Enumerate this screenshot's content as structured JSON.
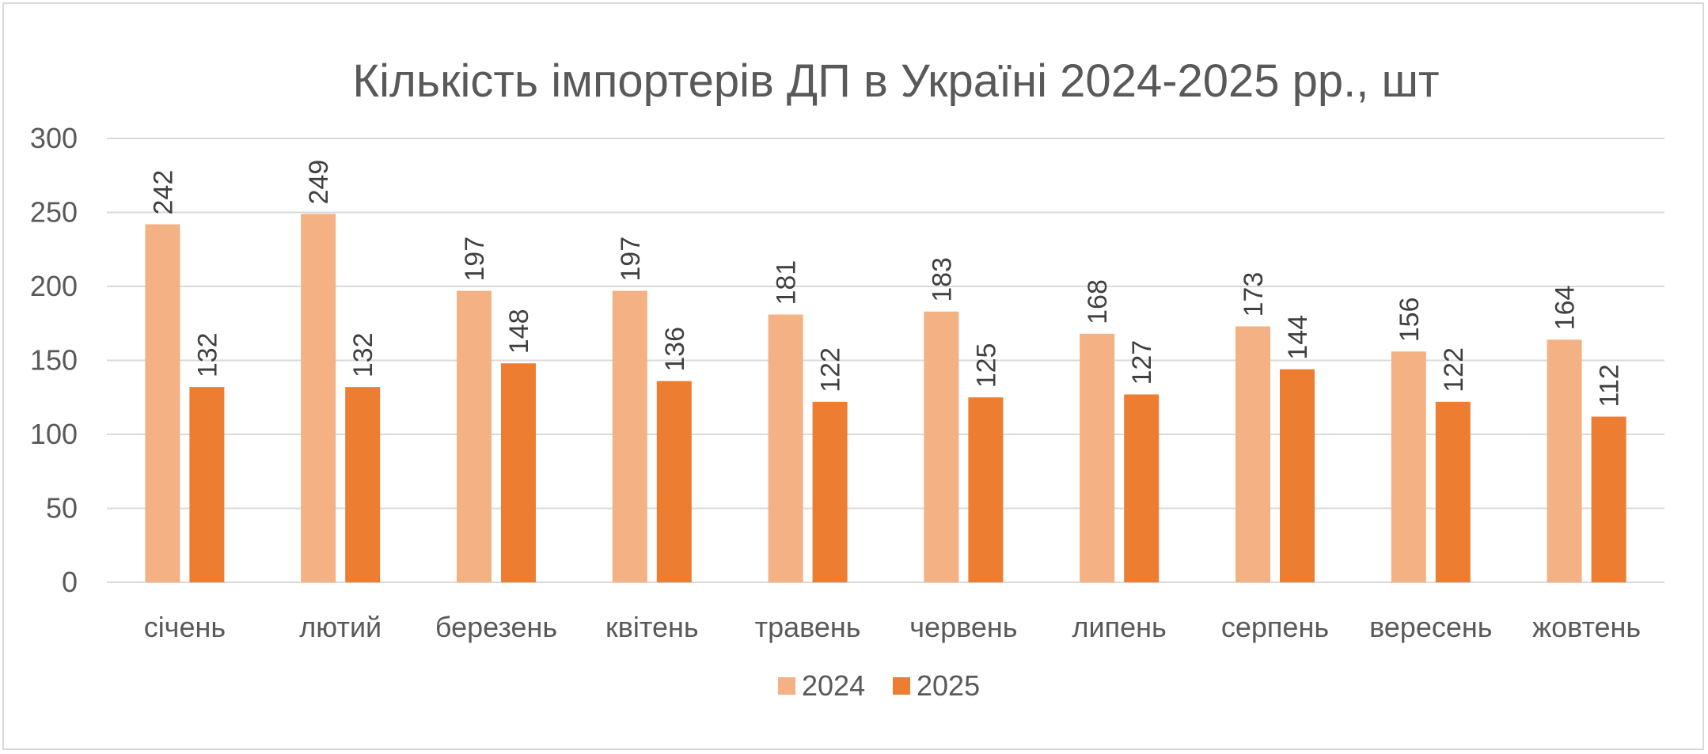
{
  "chart_data": {
    "type": "bar",
    "title": "Кількість імпортерів ДП в Україні 2024-2025 рр., шт",
    "xlabel": "",
    "ylabel": "",
    "ylim": [
      0,
      300
    ],
    "yticks": [
      0,
      50,
      100,
      150,
      200,
      250,
      300
    ],
    "grid": true,
    "legend_position": "bottom",
    "categories": [
      "січень",
      "лютий",
      "березень",
      "квітень",
      "травень",
      "червень",
      "липень",
      "серпень",
      "вересень",
      "жовтень"
    ],
    "series": [
      {
        "name": "2024",
        "color": "#F4B183",
        "values": [
          242,
          249,
          197,
          197,
          181,
          183,
          168,
          173,
          156,
          164
        ]
      },
      {
        "name": "2025",
        "color": "#ED7D31",
        "values": [
          132,
          132,
          148,
          136,
          122,
          125,
          127,
          144,
          122,
          112
        ]
      }
    ]
  }
}
